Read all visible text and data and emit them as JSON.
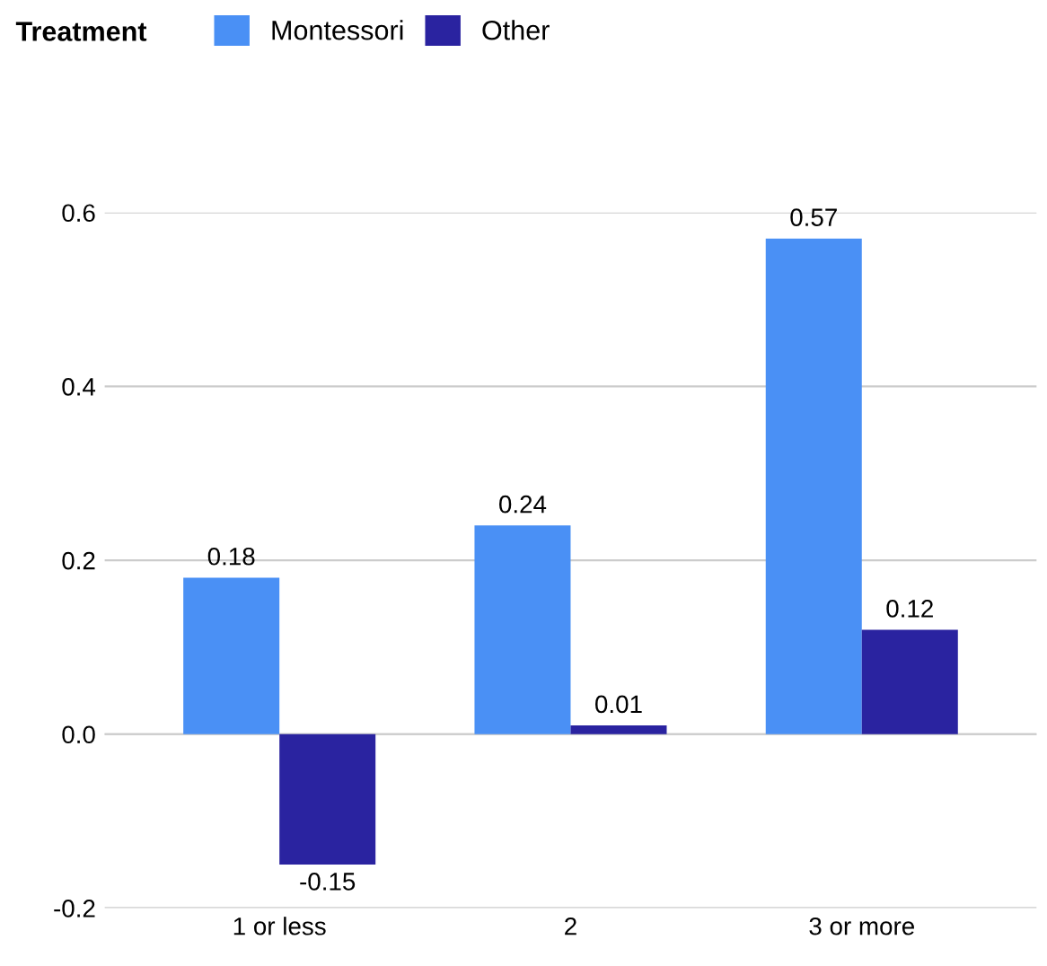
{
  "chart_data": {
    "type": "bar",
    "categories": [
      "1 or less",
      "2",
      "3 or more"
    ],
    "series": [
      {
        "name": "Montessori",
        "color": "#4a90f5",
        "values": [
          0.18,
          0.24,
          0.57
        ]
      },
      {
        "name": "Other",
        "color": "#2a23a0",
        "values": [
          -0.15,
          0.01,
          0.12
        ]
      }
    ],
    "legend_title": "Treatment",
    "legend": "top",
    "ylim": [
      -0.2,
      0.6
    ],
    "yticks": [
      {
        "value": -0.2,
        "label": "-0.2"
      },
      {
        "value": 0,
        "label": "0.0"
      },
      {
        "value": 0.2,
        "label": "0.2"
      },
      {
        "value": 0.4,
        "label": "0.4"
      },
      {
        "value": 0.6,
        "label": "0.6"
      }
    ],
    "grid": "y",
    "data_labels": true
  }
}
